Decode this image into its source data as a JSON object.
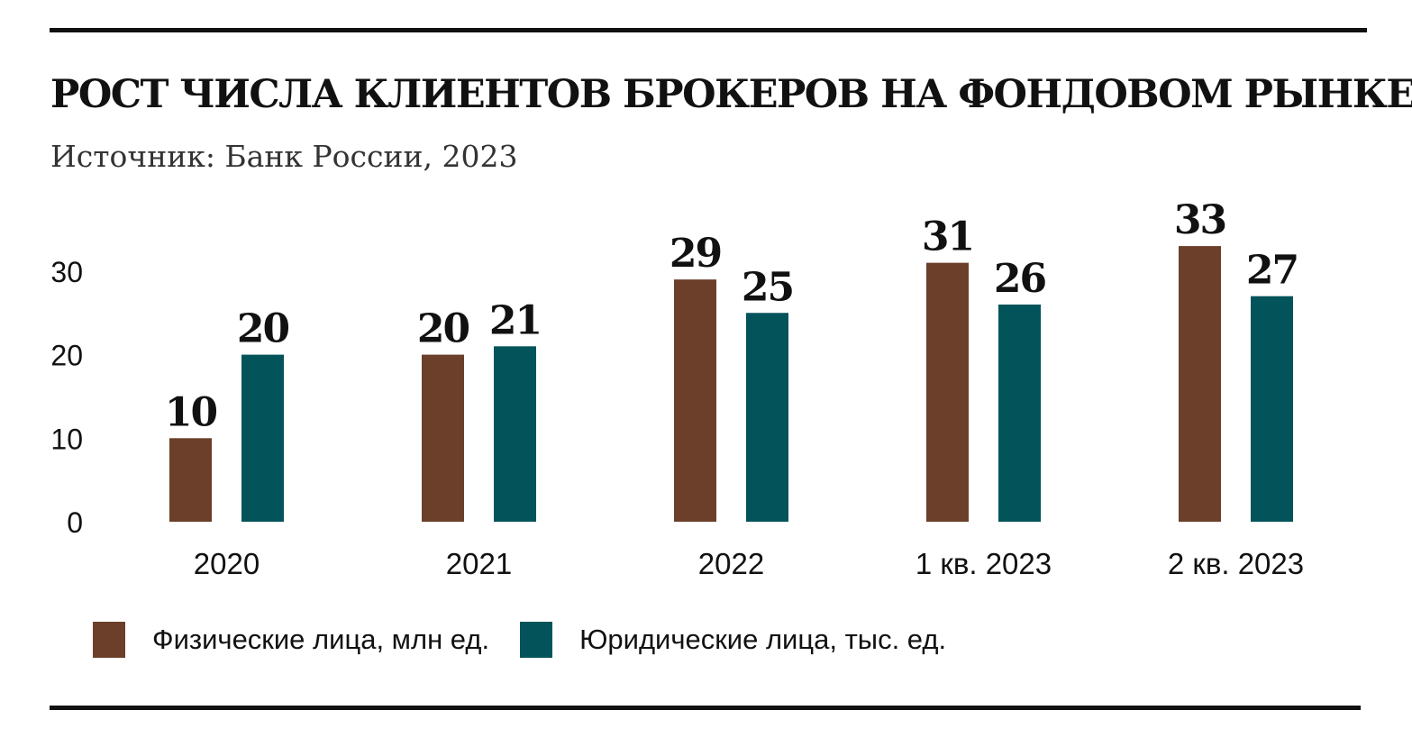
{
  "header": {
    "title": "РОСТ ЧИСЛА КЛИЕНТОВ БРОКЕРОВ НА ФОНДОВОМ РЫНКЕ",
    "subtitle": "Источник: Банк России, 2023"
  },
  "colors": {
    "individuals": "#6b3f2a",
    "legal_entities": "#03545a"
  },
  "chart_data": {
    "type": "bar",
    "title": "РОСТ ЧИСЛА КЛИЕНТОВ БРОКЕРОВ НА ФОНДОВОМ РЫНКЕ",
    "categories": [
      "2020",
      "2021",
      "2022",
      "1 кв. 2023",
      "2 кв. 2023"
    ],
    "series": [
      {
        "name": "Физические лица, млн ед.",
        "color": "#6b3f2a",
        "values": [
          10,
          20,
          29,
          31,
          33
        ]
      },
      {
        "name": "Юридические лица, тыс. ед.",
        "color": "#03545a",
        "values": [
          20,
          21,
          25,
          26,
          27
        ]
      }
    ],
    "yticks": [
      "0",
      "10",
      "20",
      "30"
    ],
    "ylim": [
      0,
      30
    ],
    "grid": false,
    "legend": "bottom-left",
    "data_labels": true
  },
  "legend": {
    "items": [
      {
        "label": "Физические лица, млн ед."
      },
      {
        "label": "Юридические лица, тыс. ед."
      }
    ]
  }
}
